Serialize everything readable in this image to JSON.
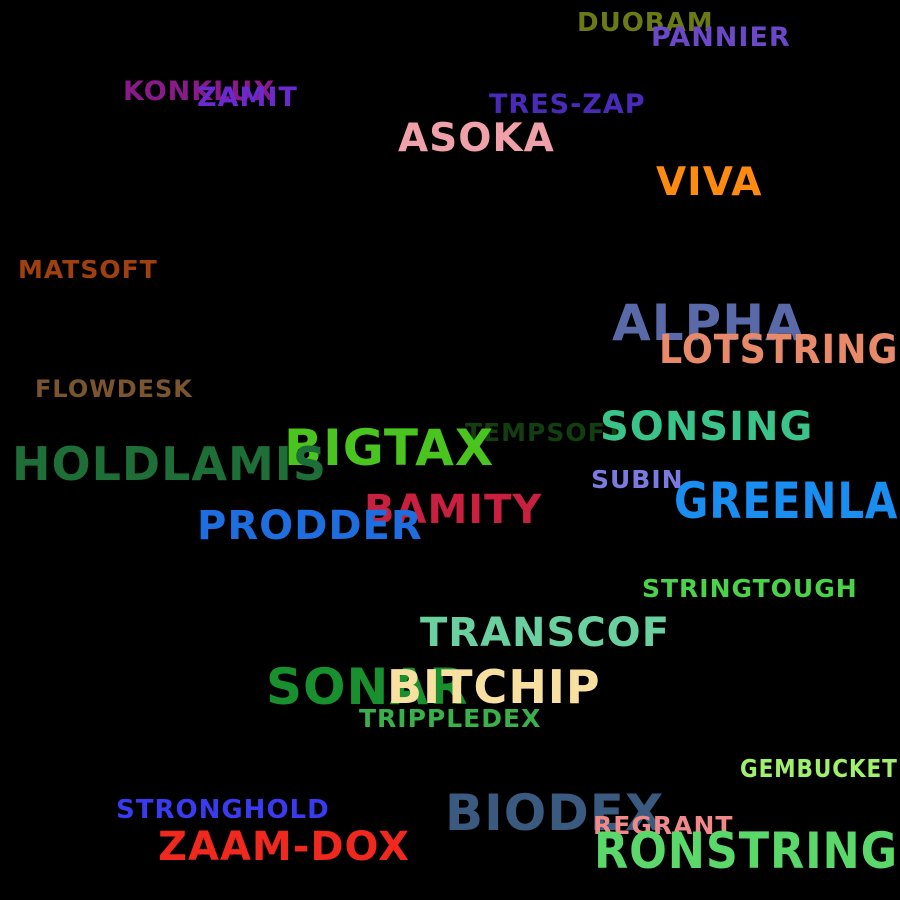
{
  "background_color": "#000000",
  "words": [
    {
      "key": "duobam",
      "text": "DUOBAM",
      "color": "#6b7a14"
    },
    {
      "key": "pannier",
      "text": "PANNIER",
      "color": "#6b48c8"
    },
    {
      "key": "konklux",
      "text": "KONKLUX",
      "color": "#8a1a8a"
    },
    {
      "key": "zamit",
      "text": "ZAMIT",
      "color": "#6a2ad0"
    },
    {
      "key": "treszap",
      "text": "TRES-ZAP",
      "color": "#4a2ab8"
    },
    {
      "key": "asoka",
      "text": "ASOKA",
      "color": "#f0a0a8"
    },
    {
      "key": "viva",
      "text": "VIVA",
      "color": "#ff8a10"
    },
    {
      "key": "matsoft",
      "text": "MATSOFT",
      "color": "#a0400e"
    },
    {
      "key": "alpha",
      "text": "ALPHA",
      "color": "#5a6aa8"
    },
    {
      "key": "lotstring",
      "text": "LOTSTRING",
      "color": "#e88a6a"
    },
    {
      "key": "flowdesk",
      "text": "FLOWDESK",
      "color": "#7a5530"
    },
    {
      "key": "tempsoft",
      "text": "TEMPSOFT",
      "color": "#123f10"
    },
    {
      "key": "sonsing",
      "text": "SONSING",
      "color": "#3ac48a"
    },
    {
      "key": "bigtax",
      "text": "BIGTAX",
      "color": "#4ac41e"
    },
    {
      "key": "holdlamis",
      "text": "HOLDLAMIS",
      "color": "#1e6e38"
    },
    {
      "key": "subin",
      "text": "SUBIN",
      "color": "#7a7ae0"
    },
    {
      "key": "greenla",
      "text": "GREENLA",
      "color": "#1a8ef0"
    },
    {
      "key": "bamity",
      "text": "BAMITY",
      "color": "#c8203e"
    },
    {
      "key": "prodder",
      "text": "PRODDER",
      "color": "#1e6ee0"
    },
    {
      "key": "stringtough",
      "text": "STRINGTOUGH",
      "color": "#4ad24a"
    },
    {
      "key": "transcof",
      "text": "TRANSCOF",
      "color": "#6ad0a0"
    },
    {
      "key": "sonar",
      "text": "SONAR",
      "color": "#18902e"
    },
    {
      "key": "bitchip",
      "text": "BITCHIP",
      "color": "#f8e0a0"
    },
    {
      "key": "trippledex",
      "text": "TRIPPLEDEX",
      "color": "#3ab04a"
    },
    {
      "key": "gembucket",
      "text": "GEMBUCKET",
      "color": "#a0f070"
    },
    {
      "key": "stronghold",
      "text": "STRONGHOLD",
      "color": "#3a3af0"
    },
    {
      "key": "biodex",
      "text": "BIODEX",
      "color": "#3a5a80"
    },
    {
      "key": "regrant",
      "text": "REGRANT",
      "color": "#f08a8a"
    },
    {
      "key": "zaamdox",
      "text": "ZAAM-DOX",
      "color": "#f0281e"
    },
    {
      "key": "ronstring",
      "text": "RONSTRING",
      "color": "#5ad86a"
    }
  ]
}
